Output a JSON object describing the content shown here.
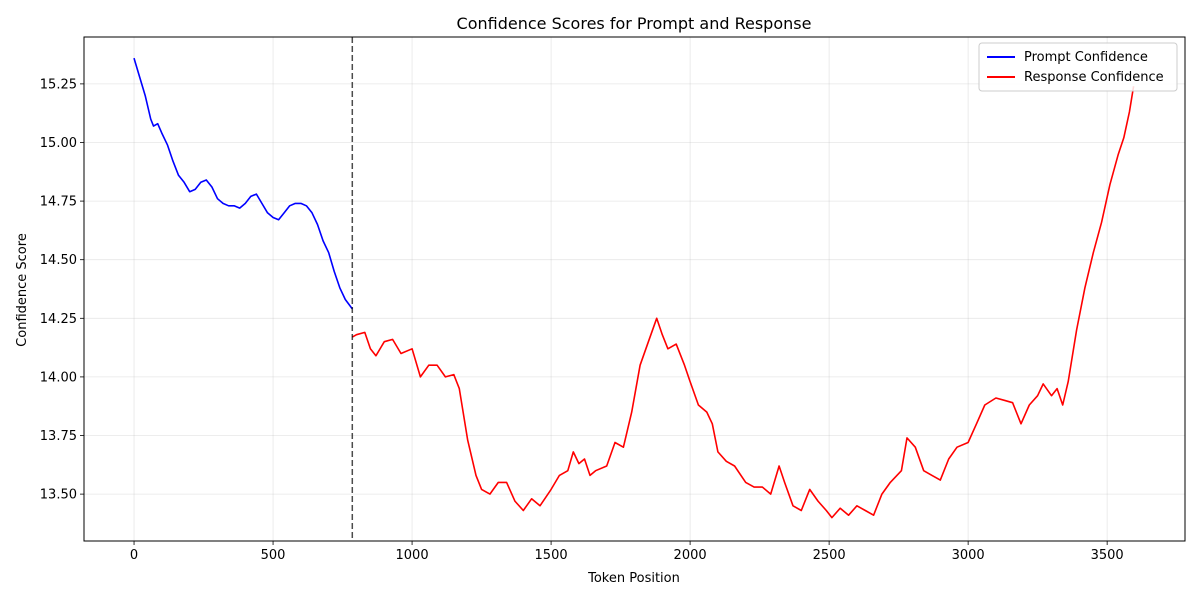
{
  "chart_data": {
    "type": "line",
    "title": "Confidence Scores for Prompt and Response",
    "xlabel": "Token Position",
    "ylabel": "Confidence Score",
    "xlim": [
      -180,
      3780
    ],
    "ylim": [
      13.3,
      15.45
    ],
    "xticks": [
      0,
      500,
      1000,
      1500,
      2000,
      2500,
      3000,
      3500
    ],
    "xtick_labels": [
      "0",
      "500",
      "1000",
      "1500",
      "2000",
      "2500",
      "3000",
      "3500"
    ],
    "yticks": [
      13.5,
      13.75,
      14.0,
      14.25,
      14.5,
      14.75,
      15.0,
      15.25
    ],
    "ytick_labels": [
      "13.50",
      "13.75",
      "14.00",
      "14.25",
      "14.50",
      "14.75",
      "15.00",
      "15.25"
    ],
    "grid": true,
    "legend_position": "top-right",
    "divider_x": 785,
    "series": [
      {
        "name": "Prompt Confidence",
        "color": "#0000ff",
        "x": [
          0,
          20,
          40,
          60,
          70,
          85,
          100,
          120,
          140,
          160,
          180,
          200,
          220,
          240,
          260,
          280,
          300,
          320,
          340,
          360,
          380,
          400,
          420,
          440,
          460,
          480,
          500,
          520,
          540,
          560,
          580,
          600,
          620,
          640,
          660,
          680,
          700,
          720,
          740,
          760,
          785
        ],
        "y": [
          15.36,
          15.28,
          15.2,
          15.1,
          15.07,
          15.08,
          15.04,
          14.99,
          14.92,
          14.86,
          14.83,
          14.79,
          14.8,
          14.83,
          14.84,
          14.81,
          14.76,
          14.74,
          14.73,
          14.73,
          14.72,
          14.74,
          14.77,
          14.78,
          14.74,
          14.7,
          14.68,
          14.67,
          14.7,
          14.73,
          14.74,
          14.74,
          14.73,
          14.7,
          14.65,
          14.58,
          14.53,
          14.45,
          14.38,
          14.33,
          14.29
        ]
      },
      {
        "name": "Response Confidence",
        "color": "#ff0000",
        "x": [
          785,
          800,
          830,
          850,
          870,
          900,
          930,
          960,
          1000,
          1030,
          1060,
          1090,
          1120,
          1150,
          1170,
          1200,
          1230,
          1250,
          1280,
          1310,
          1340,
          1370,
          1400,
          1430,
          1460,
          1500,
          1530,
          1560,
          1580,
          1600,
          1620,
          1640,
          1660,
          1700,
          1730,
          1760,
          1790,
          1820,
          1850,
          1880,
          1900,
          1920,
          1950,
          1980,
          2000,
          2030,
          2060,
          2080,
          2100,
          2130,
          2160,
          2200,
          2230,
          2260,
          2290,
          2320,
          2340,
          2370,
          2400,
          2430,
          2460,
          2490,
          2510,
          2540,
          2570,
          2600,
          2630,
          2660,
          2690,
          2720,
          2760,
          2780,
          2810,
          2840,
          2870,
          2900,
          2930,
          2960,
          3000,
          3030,
          3060,
          3100,
          3130,
          3160,
          3190,
          3220,
          3250,
          3270,
          3300,
          3320,
          3340,
          3360,
          3390,
          3420,
          3450,
          3480,
          3510,
          3540,
          3560,
          3580,
          3595
        ],
        "y": [
          14.17,
          14.18,
          14.19,
          14.12,
          14.09,
          14.15,
          14.16,
          14.1,
          14.12,
          14.0,
          14.05,
          14.05,
          14.0,
          14.01,
          13.95,
          13.73,
          13.58,
          13.52,
          13.5,
          13.55,
          13.55,
          13.47,
          13.43,
          13.48,
          13.45,
          13.52,
          13.58,
          13.6,
          13.68,
          13.63,
          13.65,
          13.58,
          13.6,
          13.62,
          13.72,
          13.7,
          13.85,
          14.05,
          14.15,
          14.25,
          14.18,
          14.12,
          14.14,
          14.05,
          13.98,
          13.88,
          13.85,
          13.8,
          13.68,
          13.64,
          13.62,
          13.55,
          13.53,
          13.53,
          13.5,
          13.62,
          13.55,
          13.45,
          13.43,
          13.52,
          13.47,
          13.43,
          13.4,
          13.44,
          13.41,
          13.45,
          13.43,
          13.41,
          13.5,
          13.55,
          13.6,
          13.74,
          13.7,
          13.6,
          13.58,
          13.56,
          13.65,
          13.7,
          13.72,
          13.8,
          13.88,
          13.91,
          13.9,
          13.89,
          13.8,
          13.88,
          13.92,
          13.97,
          13.92,
          13.95,
          13.88,
          13.98,
          14.2,
          14.38,
          14.53,
          14.66,
          14.82,
          14.95,
          15.02,
          15.13,
          15.24
        ]
      }
    ]
  }
}
